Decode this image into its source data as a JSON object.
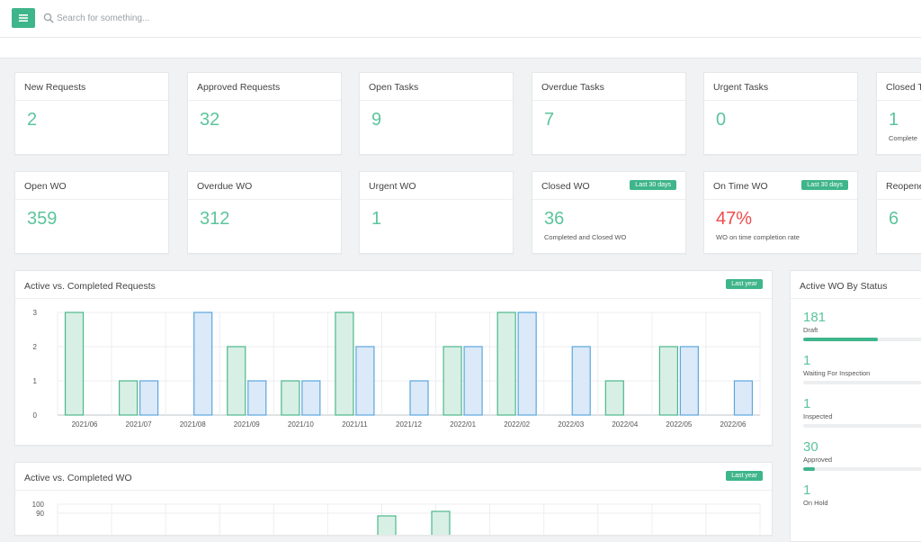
{
  "colors": {
    "accent": "#3fb58b",
    "value_green": "#5cc49c",
    "value_red": "#ef4b4b",
    "bar_active": "#4cb88b",
    "bar_completed": "#5ba7de"
  },
  "search": {
    "placeholder": "Search for something..."
  },
  "stats_row1": [
    {
      "title": "New Requests",
      "value": "2"
    },
    {
      "title": "Approved Requests",
      "value": "32"
    },
    {
      "title": "Open Tasks",
      "value": "9"
    },
    {
      "title": "Overdue Tasks",
      "value": "7"
    },
    {
      "title": "Urgent Tasks",
      "value": "0"
    },
    {
      "title": "Closed T",
      "value": "1",
      "sub": "Complete"
    }
  ],
  "stats_row2": [
    {
      "title": "Open WO",
      "value": "359"
    },
    {
      "title": "Overdue WO",
      "value": "312"
    },
    {
      "title": "Urgent WO",
      "value": "1"
    },
    {
      "title": "Closed WO",
      "badge": "Last 30 days",
      "value": "36",
      "sub": "Completed and Closed WO"
    },
    {
      "title": "On Time WO",
      "badge": "Last 30 days",
      "value": "47%",
      "sub": "WO on time completion rate"
    },
    {
      "title": "Reopene",
      "value": "6"
    }
  ],
  "requests_chart": {
    "title": "Active vs. Completed Requests",
    "badge": "Last year"
  },
  "wo_chart": {
    "title": "Active vs. Completed WO",
    "badge": "Last year",
    "visible_ticks": [
      "100",
      "90"
    ]
  },
  "wo_status": {
    "title": "Active WO By Status",
    "items": [
      {
        "value": "181",
        "label": "Draft",
        "fraction": 0.59
      },
      {
        "value": "1",
        "label": "Waiting For Inspection",
        "fraction": 0.0
      },
      {
        "value": "1",
        "label": "Inspected",
        "fraction": 0.0
      },
      {
        "value": "30",
        "label": "Approved",
        "fraction": 0.09
      },
      {
        "value": "1",
        "label": "On Hold",
        "fraction": 0.0
      }
    ]
  },
  "chart_data": [
    {
      "type": "bar",
      "title": "Active vs. Completed Requests",
      "categories": [
        "2021/06",
        "2021/07",
        "2021/08",
        "2021/09",
        "2021/10",
        "2021/11",
        "2021/12",
        "2022/01",
        "2022/02",
        "2022/03",
        "2022/04",
        "2022/05",
        "2022/06"
      ],
      "series": [
        {
          "values": [
            3,
            1,
            0,
            2,
            1,
            3,
            0,
            2,
            3,
            0,
            1,
            2,
            0
          ]
        },
        {
          "values": [
            0,
            1,
            3,
            1,
            1,
            2,
            1,
            2,
            3,
            2,
            0,
            2,
            1
          ]
        }
      ],
      "yticks": [
        "0",
        "1",
        "2",
        "3"
      ],
      "ylim": [
        0,
        3
      ],
      "grid": true
    },
    {
      "type": "bar",
      "title": "Active vs. Completed WO",
      "yticks": [
        "100",
        "90"
      ],
      "grid": true
    }
  ]
}
